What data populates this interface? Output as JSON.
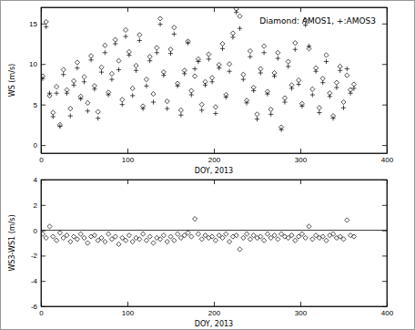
{
  "chart_data": [
    {
      "type": "scatter",
      "xlabel": "DOY, 2013",
      "ylabel": "WS (m/s)",
      "annotations": [
        "Diamond: AMOS1, +:AMOS3"
      ],
      "xlim": [
        0,
        400
      ],
      "xticks": [
        0,
        100,
        200,
        300,
        400
      ],
      "ylim": [
        -1,
        17
      ],
      "yticks": [
        0,
        5,
        10,
        15
      ],
      "x": [
        2,
        6,
        10,
        14,
        18,
        22,
        26,
        30,
        34,
        38,
        42,
        46,
        50,
        54,
        58,
        62,
        66,
        70,
        74,
        78,
        82,
        86,
        90,
        94,
        98,
        102,
        106,
        110,
        114,
        118,
        122,
        126,
        130,
        134,
        138,
        142,
        146,
        150,
        154,
        158,
        162,
        166,
        170,
        174,
        178,
        182,
        186,
        190,
        194,
        198,
        202,
        206,
        210,
        214,
        218,
        222,
        226,
        230,
        234,
        238,
        242,
        246,
        250,
        254,
        258,
        262,
        266,
        270,
        274,
        278,
        282,
        286,
        290,
        294,
        298,
        302,
        306,
        310,
        314,
        318,
        322,
        326,
        330,
        334,
        338,
        342,
        346,
        350,
        354,
        358,
        362
      ],
      "series": [
        {
          "marker": "diamond",
          "color": "#000000",
          "values": [
            8.5,
            15.2,
            6.1,
            4.0,
            7.2,
            2.5,
            9.3,
            6.8,
            4.5,
            7.9,
            10.2,
            6.0,
            8.4,
            5.2,
            11.0,
            7.3,
            4.1,
            9.6,
            12.3,
            6.5,
            8.8,
            13.0,
            10.4,
            5.6,
            14.2,
            11.5,
            7.0,
            9.8,
            13.6,
            4.8,
            8.1,
            10.9,
            6.3,
            12.0,
            15.6,
            9.0,
            5.4,
            11.8,
            14.5,
            7.6,
            4.3,
            9.2,
            12.8,
            6.7,
            8.5,
            10.6,
            5.0,
            7.8,
            11.2,
            8.3,
            4.7,
            9.9,
            12.5,
            6.2,
            10.0,
            13.8,
            16.8,
            15.9,
            8.7,
            5.5,
            11.6,
            7.1,
            3.8,
            9.4,
            12.2,
            6.6,
            4.4,
            8.9,
            11.4,
            2.2,
            5.8,
            10.3,
            7.4,
            12.6,
            8.0,
            5.1,
            15.4,
            11.9,
            6.9,
            9.5,
            4.6,
            8.2,
            11.1,
            6.4,
            3.6,
            7.7,
            9.7,
            5.3,
            8.6,
            6.8,
            7.5
          ]
        },
        {
          "marker": "plus",
          "color": "#000000",
          "values": [
            8.2,
            14.6,
            6.4,
            3.5,
            6.4,
            2.3,
            8.7,
            6.4,
            3.6,
            7.4,
            9.5,
            5.7,
            7.8,
            4.2,
            10.5,
            6.9,
            3.3,
            9.0,
            11.4,
            6.2,
            8.1,
            12.5,
            9.3,
            5.0,
            13.4,
            11.1,
            6.1,
            9.2,
            12.9,
            4.5,
            7.3,
            10.4,
            5.3,
            11.4,
            14.9,
            8.6,
            4.5,
            11.3,
            13.7,
            7.3,
            3.7,
            8.8,
            12.6,
            6.2,
            9.4,
            10.3,
            4.3,
            7.4,
            10.6,
            7.8,
            3.9,
            9.5,
            11.9,
            5.9,
            9.1,
            13.3,
            16.4,
            14.4,
            8.1,
            5.2,
            10.9,
            6.7,
            3.2,
            8.9,
            11.4,
            6.3,
            3.8,
            8.5,
            10.7,
            1.9,
            5.3,
            9.7,
            7.0,
            11.8,
            7.5,
            4.8,
            14.8,
            12.2,
            6.2,
            9.1,
            4.0,
            7.7,
            10.3,
            6.0,
            3.3,
            7.1,
            9.2,
            4.6,
            9.4,
            6.4,
            7.0
          ]
        }
      ]
    },
    {
      "type": "scatter",
      "xlabel": "DOY, 2013",
      "ylabel": "WS3-WS1 (m/s)",
      "xlim": [
        0,
        400
      ],
      "xticks": [
        0,
        100,
        200,
        300,
        400
      ],
      "ylim": [
        -6,
        4
      ],
      "yticks": [
        -6,
        -4,
        -2,
        0,
        2,
        4
      ],
      "reference_lines": [
        0
      ],
      "x": [
        2,
        6,
        10,
        14,
        18,
        22,
        26,
        30,
        34,
        38,
        42,
        46,
        50,
        54,
        58,
        62,
        66,
        70,
        74,
        78,
        82,
        86,
        90,
        94,
        98,
        102,
        106,
        110,
        114,
        118,
        122,
        126,
        130,
        134,
        138,
        142,
        146,
        150,
        154,
        158,
        162,
        166,
        170,
        174,
        178,
        182,
        186,
        190,
        194,
        198,
        202,
        206,
        210,
        214,
        218,
        222,
        226,
        230,
        234,
        238,
        242,
        246,
        250,
        254,
        258,
        262,
        266,
        270,
        274,
        278,
        282,
        286,
        290,
        294,
        298,
        302,
        306,
        310,
        314,
        318,
        322,
        326,
        330,
        334,
        338,
        342,
        346,
        350,
        354,
        358,
        362
      ],
      "series": [
        {
          "marker": "diamond",
          "color": "#000000",
          "values": [
            -0.3,
            -0.6,
            0.3,
            -0.5,
            -0.8,
            -0.2,
            -0.6,
            -0.4,
            -0.9,
            -0.5,
            -0.7,
            -0.3,
            -0.6,
            -1.0,
            -0.5,
            -0.4,
            -0.8,
            -0.6,
            -0.9,
            -0.3,
            -0.7,
            -0.5,
            -1.1,
            -0.6,
            -0.8,
            -0.4,
            -0.9,
            -0.6,
            -0.7,
            -0.3,
            -0.8,
            -0.5,
            -1.0,
            -0.6,
            -0.7,
            -0.4,
            -0.9,
            -0.5,
            -0.8,
            -0.3,
            -0.6,
            -0.4,
            -0.2,
            -0.5,
            0.9,
            -0.3,
            -0.7,
            -0.4,
            -0.6,
            -0.5,
            -0.8,
            -0.4,
            -0.6,
            -0.3,
            -0.9,
            -0.5,
            -0.4,
            -1.5,
            -0.6,
            -0.3,
            -0.7,
            -0.4,
            -0.6,
            -0.5,
            -0.8,
            -0.3,
            -0.6,
            -0.4,
            -0.7,
            -0.3,
            -0.5,
            -0.6,
            -0.4,
            -0.8,
            -0.5,
            -0.3,
            -0.6,
            0.3,
            -0.7,
            -0.4,
            -0.6,
            -0.5,
            -0.8,
            -0.4,
            -0.3,
            -0.6,
            -0.5,
            -0.7,
            0.8,
            -0.4,
            -0.5
          ]
        }
      ]
    }
  ]
}
